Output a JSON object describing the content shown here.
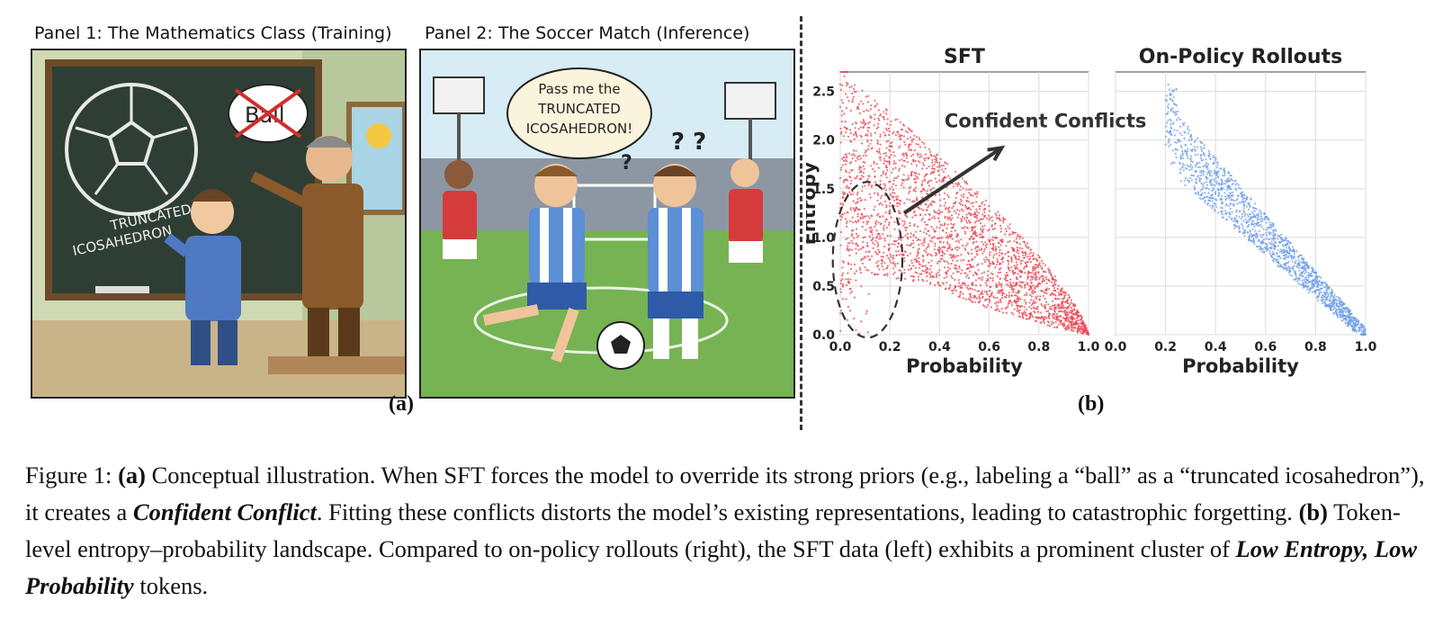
{
  "figure": {
    "panel1_title": "Panel 1: The Mathematics Class (Training)",
    "panel2_title": "Panel 2: The Soccer Match (Inference)",
    "panel1_board_text_line1": "TRUNCATED",
    "panel1_board_text_line2": "ICOSAHEDRON",
    "panel1_bubble_text": "Ball",
    "panel2_bubble_line1": "Pass me the",
    "panel2_bubble_line2": "TRUNCATED",
    "panel2_bubble_line3": "ICOSAHEDRON!",
    "panel2_confused_marks": "? ?",
    "panel2_confused_mark_single": "?",
    "sublabel_a": "(a)",
    "sublabel_b": "(b)"
  },
  "chart_data": [
    {
      "type": "scatter",
      "title": "SFT",
      "xlabel": "Probability",
      "ylabel": "Entropy",
      "xlim": [
        0.0,
        1.0
      ],
      "ylim": [
        0.0,
        2.7
      ],
      "xticks": [
        "0.0",
        "0.2",
        "0.4",
        "0.6",
        "0.8",
        "1.0"
      ],
      "yticks": [
        "0.0",
        "0.5",
        "1.0",
        "1.5",
        "2.0",
        "2.5"
      ],
      "grid": true,
      "color": "#e8434f",
      "annotation": "Confident Conflicts",
      "highlight_region": {
        "x_center": 0.11,
        "y_center": 0.77,
        "x_halfwidth": 0.14,
        "y_halfwidth": 0.8
      }
    },
    {
      "type": "scatter",
      "title": "On-Policy Rollouts",
      "xlabel": "Probability",
      "ylabel": "",
      "xlim": [
        0.0,
        1.0
      ],
      "ylim": [
        0.0,
        2.7
      ],
      "xticks": [
        "0.0",
        "0.2",
        "0.4",
        "0.6",
        "0.8",
        "1.0"
      ],
      "grid": true,
      "color": "#6f9ee8"
    }
  ],
  "caption": {
    "label": "Figure 1:",
    "a_marker": "(a)",
    "part1": " Conceptual illustration. When SFT forces the model to override its strong priors (e.g., labeling a “ball” as a “truncated icosahedron”), it creates a ",
    "emph1": "Confident Conflict",
    "part2": ". Fitting these conflicts distorts the model’s existing representations, leading to catastrophic forgetting. ",
    "b_marker": "(b)",
    "part3": " Token-level entropy–probability landscape. Compared to on-policy rollouts (right), the SFT data (left) exhibits a prominent cluster of ",
    "emph2": "Low Entropy, Low Probability",
    "part4": " tokens."
  }
}
